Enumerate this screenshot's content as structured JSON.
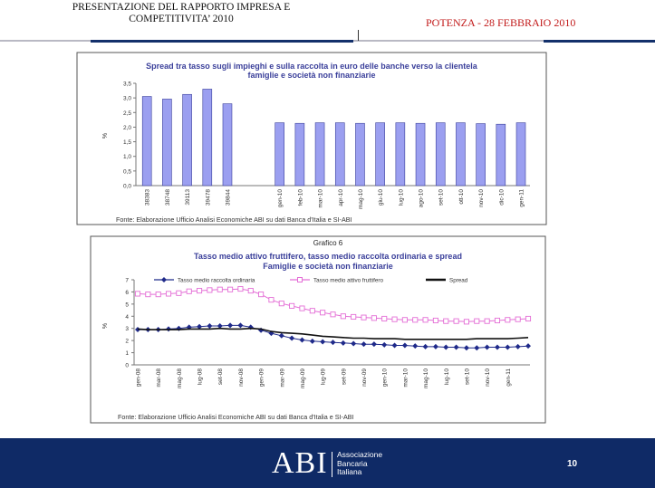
{
  "header": {
    "title_line1": "PRESENTAZIONE DEL RAPPORTO IMPRESA E",
    "title_line2": "COMPETITIVITA’ 2010",
    "event_place": "POTENZA",
    "event_sep": " - ",
    "event_date": "28 FEBBRAIO 2010"
  },
  "footer": {
    "logo_text": "ABI",
    "logo_sub1": "Associazione",
    "logo_sub2": "Bancaria",
    "logo_sub3": "Italiana",
    "page_number": "10"
  },
  "colors": {
    "bar_fill": "#9b9ff0",
    "bar_stroke": "#3a3f9a",
    "navy": "#0f2a66",
    "raccolta": "#1f2a8a",
    "attivo": "#e46fd6",
    "spread": "#111111"
  },
  "chart_data": [
    {
      "type": "bar",
      "title": "Spread tra tasso sugli impieghi e sulla raccolta in euro delle banche verso la clientela",
      "subtitle": "famiglie e società non finanziarie",
      "ylabel": "%",
      "ylim": [
        0,
        3.5
      ],
      "yticks": [
        "0,0",
        "0,5",
        "1,0",
        "1,5",
        "2,0",
        "2,5",
        "3,0",
        "3,5"
      ],
      "categories": [
        "38383",
        "38748",
        "39113",
        "39478",
        "39844",
        "gen-10",
        "feb-10",
        "mar-10",
        "apr-10",
        "mag-10",
        "giu-10",
        "lug-10",
        "ago-10",
        "set-10",
        "ott-10",
        "nov-10",
        "dic-10",
        "gen-11"
      ],
      "values": [
        3.05,
        2.96,
        3.12,
        3.3,
        2.8,
        2.15,
        2.13,
        2.15,
        2.15,
        2.13,
        2.15,
        2.15,
        2.13,
        2.15,
        2.15,
        2.12,
        2.1,
        2.15
      ],
      "source": "Fonte: Elaborazione Ufficio Analisi Economiche ABI su dati Banca d'Italia e SI-ABI"
    },
    {
      "type": "line",
      "caption": "Grafico 6",
      "title": "Tasso medio attivo fruttifero, tasso medio raccolta ordinaria e spread",
      "subtitle": "Famiglie e società non finanziarie",
      "ylabel": "%",
      "ylim": [
        0,
        7
      ],
      "yticks": [
        "0",
        "1",
        "2",
        "3",
        "4",
        "5",
        "6",
        "7"
      ],
      "xticks": [
        "gen-08",
        "mar-08",
        "mag-08",
        "lug-08",
        "set-08",
        "nov-08",
        "gen-09",
        "mar-09",
        "mag-09",
        "lug-09",
        "set-09",
        "nov-09",
        "gen-10",
        "mar-10",
        "mag-10",
        "lug-10",
        "set-10",
        "nov-10",
        "gen-11"
      ],
      "series": [
        {
          "name": "Tasso medio raccolta ordinaria",
          "marker": "diamond",
          "values": [
            2.9,
            2.9,
            2.9,
            2.95,
            3.0,
            3.1,
            3.15,
            3.2,
            3.2,
            3.25,
            3.25,
            3.1,
            2.85,
            2.6,
            2.4,
            2.2,
            2.05,
            1.95,
            1.9,
            1.85,
            1.8,
            1.75,
            1.7,
            1.7,
            1.65,
            1.6,
            1.6,
            1.55,
            1.5,
            1.5,
            1.45,
            1.45,
            1.4,
            1.4,
            1.45,
            1.45,
            1.45,
            1.5,
            1.55
          ]
        },
        {
          "name": "Tasso medio attivo fruttifero",
          "marker": "square",
          "values": [
            5.85,
            5.8,
            5.8,
            5.85,
            5.9,
            6.05,
            6.1,
            6.15,
            6.2,
            6.2,
            6.25,
            6.1,
            5.8,
            5.35,
            5.05,
            4.85,
            4.65,
            4.45,
            4.3,
            4.15,
            4.0,
            3.95,
            3.9,
            3.85,
            3.8,
            3.75,
            3.7,
            3.7,
            3.7,
            3.65,
            3.6,
            3.6,
            3.55,
            3.6,
            3.6,
            3.65,
            3.7,
            3.75,
            3.8
          ]
        },
        {
          "name": "Spread",
          "marker": "none",
          "values": [
            2.95,
            2.9,
            2.9,
            2.9,
            2.9,
            2.95,
            2.95,
            2.95,
            3.0,
            2.95,
            2.95,
            3.0,
            2.95,
            2.75,
            2.65,
            2.6,
            2.55,
            2.45,
            2.35,
            2.3,
            2.25,
            2.2,
            2.2,
            2.15,
            2.15,
            2.15,
            2.1,
            2.1,
            2.1,
            2.1,
            2.1,
            2.1,
            2.1,
            2.15,
            2.15,
            2.15,
            2.15,
            2.2,
            2.25
          ]
        }
      ],
      "source": "Fonte: Elaborazione Ufficio Analisi Economiche ABI su dati Banca d'Italia e SI-ABI"
    }
  ]
}
